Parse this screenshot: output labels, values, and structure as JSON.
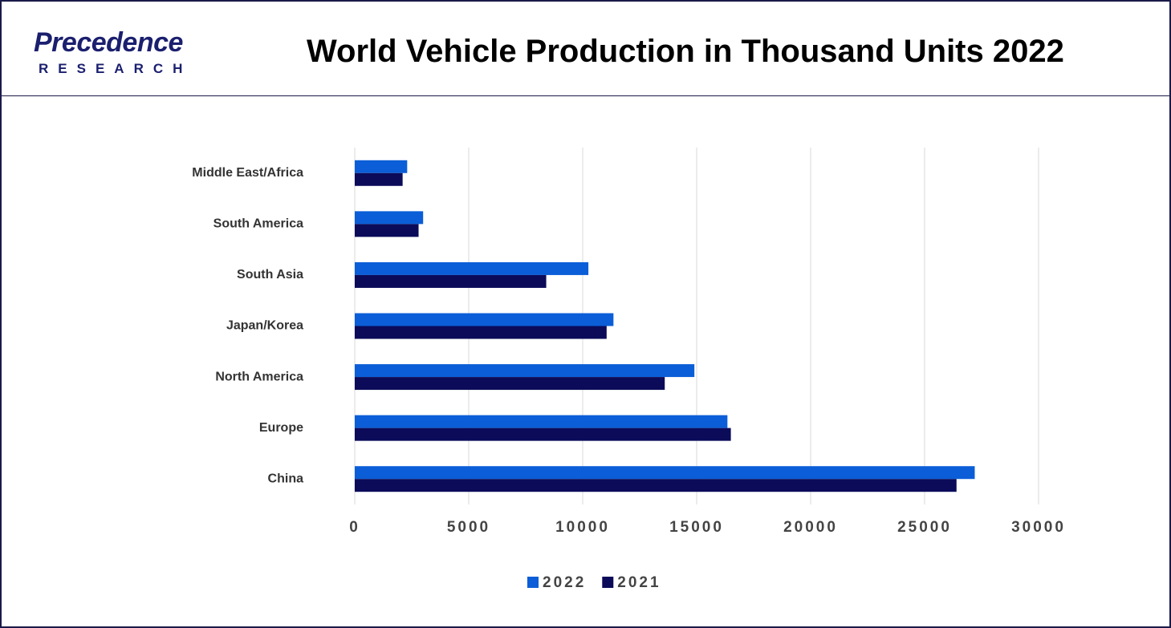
{
  "logo": {
    "name": "Precedence",
    "subtitle": "RESEARCH"
  },
  "chart_data": {
    "type": "bar",
    "orientation": "horizontal",
    "title": "World Vehicle Production in Thousand Units 2022",
    "categories": [
      "Middle East/Africa",
      "South America",
      "South Asia",
      "Japan/Korea",
      "North America",
      "Europe",
      "China"
    ],
    "series": [
      {
        "name": "2022",
        "color": "#0b5ed7",
        "values": [
          2300,
          3000,
          10250,
          11350,
          14900,
          16350,
          27200
        ]
      },
      {
        "name": "2021",
        "color": "#0b0b5a",
        "values": [
          2100,
          2800,
          8400,
          11050,
          13600,
          16500,
          26400
        ]
      }
    ],
    "xlim": [
      0,
      30000
    ],
    "xticks": [
      0,
      5000,
      10000,
      15000,
      20000,
      25000,
      30000
    ],
    "grid": true,
    "legend": "bottom"
  }
}
